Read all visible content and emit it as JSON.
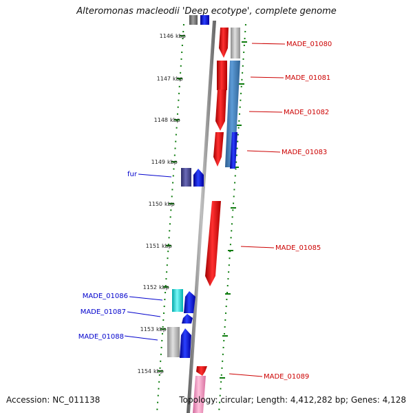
{
  "title": "Alteromonas macleodii 'Deep ecotype', complete genome",
  "accession_text": "Accession: NC_011138",
  "topology_text": "Topology: circular; Length: 4,412,282 bp; Genes: 4,128",
  "colors": {
    "label_forward": "#cc0000",
    "label_reverse": "#0000cc",
    "tick": "#0a7a0a",
    "backbone": "#888888",
    "red": "#e81010",
    "blue": "#1020e8",
    "steelblue": "#4a86c4",
    "gray": "#bcbcbc",
    "slate": "#4a4a9a",
    "cyan": "#10e8e8",
    "pink": "#f090c0"
  },
  "ruler": {
    "unit": "kbp",
    "ticks": [
      1146,
      1147,
      1148,
      1149,
      1150,
      1151,
      1152,
      1153,
      1154
    ]
  },
  "gene_labels": [
    {
      "text": "MADE_01080",
      "strand": "forward",
      "kbp": 1146.17
    },
    {
      "text": "MADE_01081",
      "strand": "forward",
      "kbp": 1146.98
    },
    {
      "text": "MADE_01082",
      "strand": "forward",
      "kbp": 1147.8
    },
    {
      "text": "MADE_01083",
      "strand": "forward",
      "kbp": 1148.75
    },
    {
      "text": "fur",
      "strand": "reverse",
      "kbp": 1149.3
    },
    {
      "text": "MADE_01085",
      "strand": "forward",
      "kbp": 1151.05
    },
    {
      "text": "MADE_01086",
      "strand": "reverse",
      "kbp": 1152.3
    },
    {
      "text": "MADE_01087",
      "strand": "reverse",
      "kbp": 1152.68
    },
    {
      "text": "MADE_01088",
      "strand": "reverse",
      "kbp": 1153.2
    },
    {
      "text": "MADE_01089",
      "strand": "forward",
      "kbp": 1154.15
    }
  ]
}
